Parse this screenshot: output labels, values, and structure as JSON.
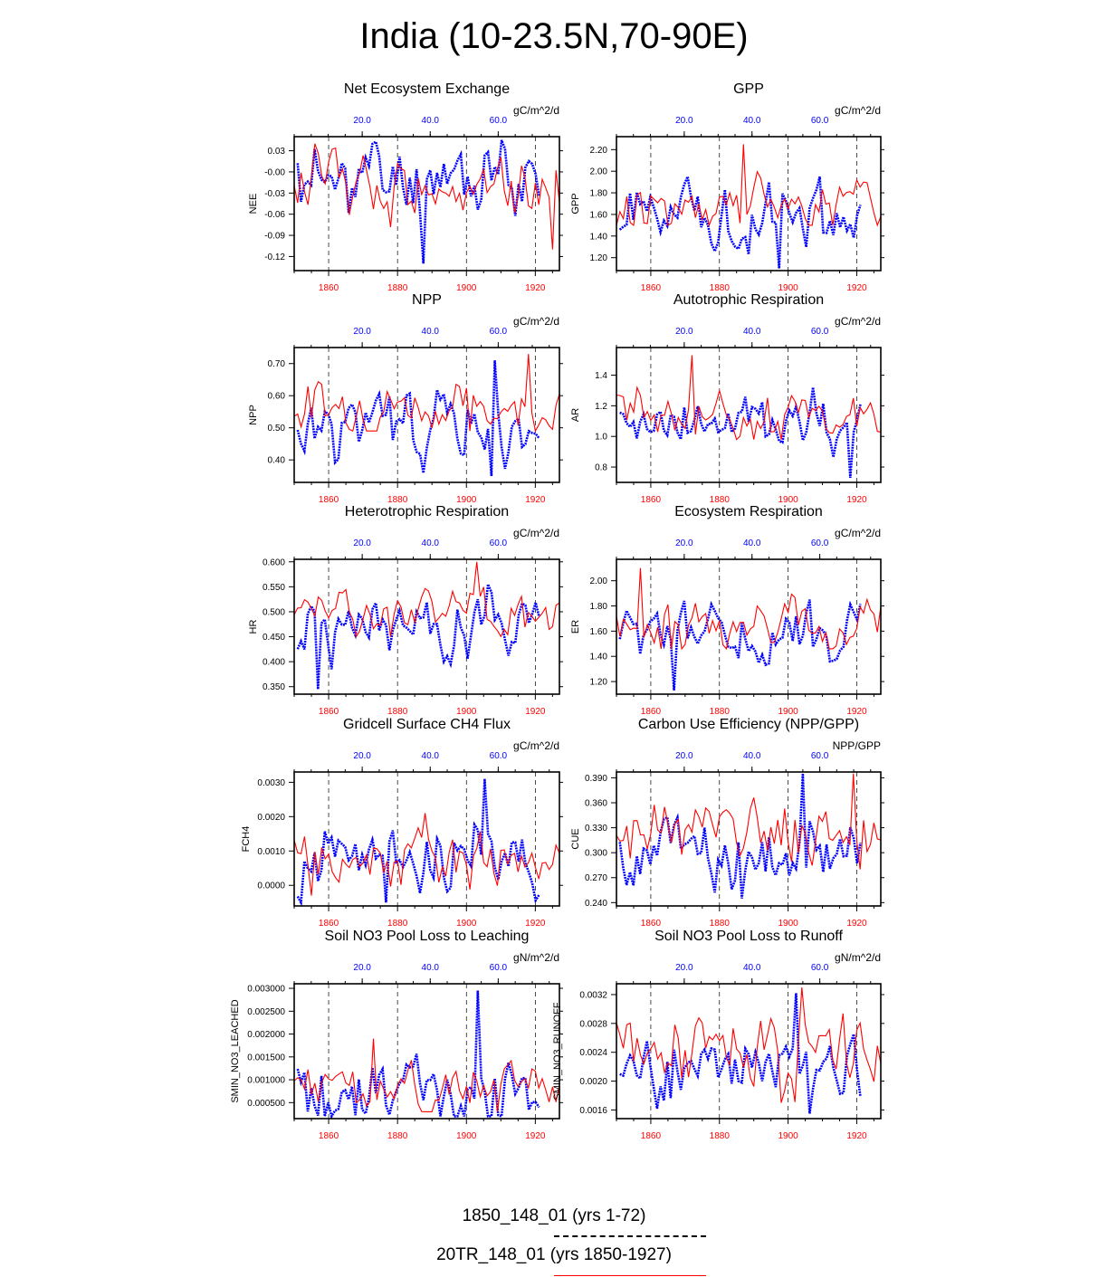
{
  "title": "India (10-23.5N,70-90E)",
  "legend": [
    {
      "label": "1850_148_01 (yrs 1-72)",
      "color": "#0000ff",
      "style": "dashed"
    },
    {
      "label": "20TR_148_01 (yrs 1850-1927)",
      "color": "#ff0000",
      "style": "solid"
    }
  ],
  "chart_data": [
    {
      "type": "line",
      "title": "Net Ecosystem Exchange",
      "ylabel": "NEE",
      "units": "gC/m^2/d",
      "ylim": [
        -0.14,
        0.05
      ],
      "yticks": [
        "0.03",
        "-0.00",
        "-0.03",
        "-0.06",
        "-0.09",
        "-0.12"
      ],
      "ytick_values": [
        0.03,
        0,
        -0.03,
        -0.06,
        -0.09,
        -0.12
      ],
      "xlim": [
        1850,
        1927
      ],
      "xticks": [
        1860,
        1880,
        1900,
        1920
      ],
      "top_xlim": [
        0,
        78
      ],
      "top_xticks": [
        "20.0",
        "40.0",
        "60.0"
      ],
      "top_xtick_values": [
        20,
        40,
        60
      ],
      "series": [
        {
          "color": "#0000ff",
          "x_axis": "top",
          "min": -0.13,
          "max": 0.045,
          "mean": -0.01,
          "seed": 11
        },
        {
          "color": "#ff0000",
          "x_axis": "bottom",
          "min": -0.11,
          "max": 0.04,
          "mean": -0.02,
          "seed": 12
        }
      ]
    },
    {
      "type": "line",
      "title": "GPP",
      "ylabel": "GPP",
      "units": "gC/m^2/d",
      "ylim": [
        1.08,
        2.32
      ],
      "yticks": [
        "2.20",
        "2.00",
        "1.80",
        "1.60",
        "1.40",
        "1.20"
      ],
      "ytick_values": [
        2.2,
        2.0,
        1.8,
        1.6,
        1.4,
        1.2
      ],
      "xlim": [
        1850,
        1927
      ],
      "xticks": [
        1860,
        1880,
        1900,
        1920
      ],
      "top_xlim": [
        0,
        78
      ],
      "top_xticks": [
        "20.0",
        "40.0",
        "60.0"
      ],
      "top_xtick_values": [
        20,
        40,
        60
      ],
      "series": [
        {
          "color": "#0000ff",
          "x_axis": "top",
          "min": 1.1,
          "max": 1.95,
          "mean": 1.6,
          "seed": 21
        },
        {
          "color": "#ff0000",
          "x_axis": "bottom",
          "min": 1.5,
          "max": 2.25,
          "mean": 1.7,
          "seed": 22
        }
      ]
    },
    {
      "type": "line",
      "title": "NPP",
      "ylabel": "NPP",
      "units": "gC/m^2/d",
      "ylim": [
        0.33,
        0.75
      ],
      "yticks": [
        "0.70",
        "0.60",
        "0.50",
        "0.40"
      ],
      "ytick_values": [
        0.7,
        0.6,
        0.5,
        0.4
      ],
      "xlim": [
        1850,
        1927
      ],
      "xticks": [
        1860,
        1880,
        1900,
        1920
      ],
      "top_xlim": [
        0,
        78
      ],
      "top_xticks": [
        "20.0",
        "40.0",
        "60.0"
      ],
      "top_xtick_values": [
        20,
        40,
        60
      ],
      "series": [
        {
          "color": "#0000ff",
          "x_axis": "top",
          "min": 0.35,
          "max": 0.71,
          "mean": 0.5,
          "seed": 31
        },
        {
          "color": "#ff0000",
          "x_axis": "bottom",
          "min": 0.49,
          "max": 0.73,
          "mean": 0.57,
          "seed": 32
        }
      ]
    },
    {
      "type": "line",
      "title": "Autotrophic Respiration",
      "ylabel": "AR",
      "units": "gC/m^2/d",
      "ylim": [
        0.7,
        1.58
      ],
      "yticks": [
        "1.4",
        "1.2",
        "1.0",
        "0.8"
      ],
      "ytick_values": [
        1.4,
        1.2,
        1.0,
        0.8
      ],
      "xlim": [
        1850,
        1927
      ],
      "xticks": [
        1860,
        1880,
        1900,
        1920
      ],
      "top_xlim": [
        0,
        78
      ],
      "top_xticks": [
        "20.0",
        "40.0",
        "60.0"
      ],
      "top_xtick_values": [
        20,
        40,
        60
      ],
      "series": [
        {
          "color": "#0000ff",
          "x_axis": "top",
          "min": 0.73,
          "max": 1.32,
          "mean": 1.08,
          "seed": 41
        },
        {
          "color": "#ff0000",
          "x_axis": "bottom",
          "min": 0.98,
          "max": 1.53,
          "mean": 1.13,
          "seed": 42
        }
      ]
    },
    {
      "type": "line",
      "title": "Heterotrophic Respiration",
      "ylabel": "HR",
      "units": "gC/m^2/d",
      "ylim": [
        0.335,
        0.605
      ],
      "yticks": [
        "0.600",
        "0.550",
        "0.500",
        "0.450",
        "0.400",
        "0.350"
      ],
      "ytick_values": [
        0.6,
        0.55,
        0.5,
        0.45,
        0.4,
        0.35
      ],
      "xlim": [
        1850,
        1927
      ],
      "xticks": [
        1860,
        1880,
        1900,
        1920
      ],
      "top_xlim": [
        0,
        78
      ],
      "top_xticks": [
        "20.0",
        "40.0",
        "60.0"
      ],
      "top_xtick_values": [
        20,
        40,
        60
      ],
      "series": [
        {
          "color": "#0000ff",
          "x_axis": "top",
          "min": 0.345,
          "max": 0.555,
          "mean": 0.46,
          "seed": 51
        },
        {
          "color": "#ff0000",
          "x_axis": "bottom",
          "min": 0.45,
          "max": 0.6,
          "mean": 0.5,
          "seed": 52
        }
      ]
    },
    {
      "type": "line",
      "title": "Ecosystem Respiration",
      "ylabel": "ER",
      "units": "gC/m^2/d",
      "ylim": [
        1.1,
        2.17
      ],
      "yticks": [
        "2.00",
        "1.80",
        "1.60",
        "1.40",
        "1.20"
      ],
      "ytick_values": [
        2.0,
        1.8,
        1.6,
        1.4,
        1.2
      ],
      "xlim": [
        1850,
        1927
      ],
      "xticks": [
        1860,
        1880,
        1900,
        1920
      ],
      "top_xlim": [
        0,
        78
      ],
      "top_xticks": [
        "20.0",
        "40.0",
        "60.0"
      ],
      "top_xtick_values": [
        20,
        40,
        60
      ],
      "series": [
        {
          "color": "#0000ff",
          "x_axis": "top",
          "min": 1.13,
          "max": 1.85,
          "mean": 1.55,
          "seed": 61
        },
        {
          "color": "#ff0000",
          "x_axis": "bottom",
          "min": 1.46,
          "max": 2.1,
          "mean": 1.65,
          "seed": 62
        }
      ]
    },
    {
      "type": "line",
      "title": "Gridcell Surface CH4 Flux",
      "ylabel": "FCH4",
      "units": "gC/m^2/d",
      "ylim": [
        -0.0006,
        0.0033
      ],
      "yticks": [
        "0.0030",
        "0.0020",
        "0.0010",
        "0.0000"
      ],
      "ytick_values": [
        0.003,
        0.002,
        0.001,
        0
      ],
      "xlim": [
        1850,
        1927
      ],
      "xticks": [
        1860,
        1880,
        1900,
        1920
      ],
      "top_xlim": [
        0,
        78
      ],
      "top_xticks": [
        "20.0",
        "40.0",
        "60.0"
      ],
      "top_xtick_values": [
        20,
        40,
        60
      ],
      "series": [
        {
          "color": "#0000ff",
          "x_axis": "top",
          "min": -0.0005,
          "max": 0.0031,
          "mean": 0.0008,
          "seed": 71
        },
        {
          "color": "#ff0000",
          "x_axis": "bottom",
          "min": -0.0003,
          "max": 0.0021,
          "mean": 0.0007,
          "seed": 72
        }
      ]
    },
    {
      "type": "line",
      "title": "Carbon Use Efficiency (NPP/GPP)",
      "ylabel": "CUE",
      "units": "NPP/GPP",
      "ylim": [
        0.236,
        0.397
      ],
      "yticks": [
        "0.390",
        "0.360",
        "0.330",
        "0.300",
        "0.270",
        "0.240"
      ],
      "ytick_values": [
        0.39,
        0.36,
        0.33,
        0.3,
        0.27,
        0.24
      ],
      "xlim": [
        1850,
        1927
      ],
      "xticks": [
        1860,
        1880,
        1900,
        1920
      ],
      "top_xlim": [
        0,
        78
      ],
      "top_xticks": [
        "20.0",
        "40.0",
        "60.0"
      ],
      "top_xtick_values": [
        20,
        40,
        60
      ],
      "series": [
        {
          "color": "#0000ff",
          "x_axis": "top",
          "min": 0.245,
          "max": 0.395,
          "mean": 0.3,
          "seed": 81
        },
        {
          "color": "#ff0000",
          "x_axis": "bottom",
          "min": 0.28,
          "max": 0.395,
          "mean": 0.325,
          "seed": 82
        }
      ]
    },
    {
      "type": "line",
      "title": "Soil NO3 Pool Loss to Leaching",
      "ylabel": "SMIN_NO3_LEACHED",
      "units": "gN/m^2/d",
      "ylim": [
        0.00015,
        0.0031
      ],
      "yticks": [
        "0.003000",
        "0.002500",
        "0.002000",
        "0.001500",
        "0.001000",
        "0.000500"
      ],
      "ytick_values": [
        0.003,
        0.0025,
        0.002,
        0.0015,
        0.001,
        0.0005
      ],
      "xlim": [
        1850,
        1927
      ],
      "xticks": [
        1860,
        1880,
        1900,
        1920
      ],
      "top_xlim": [
        0,
        78
      ],
      "top_xticks": [
        "20.0",
        "40.0",
        "60.0"
      ],
      "top_xtick_values": [
        20,
        40,
        60
      ],
      "series": [
        {
          "color": "#0000ff",
          "x_axis": "top",
          "min": 0.0002,
          "max": 0.00295,
          "mean": 0.0006,
          "seed": 91
        },
        {
          "color": "#ff0000",
          "x_axis": "bottom",
          "min": 0.0003,
          "max": 0.0019,
          "mean": 0.0008,
          "seed": 92
        }
      ]
    },
    {
      "type": "line",
      "title": "Soil NO3 Pool Loss to Runoff",
      "ylabel": "SMIN_NO3_RUNOFF",
      "units": "gN/m^2/d",
      "ylim": [
        0.00148,
        0.00335
      ],
      "yticks": [
        "0.0032",
        "0.0028",
        "0.0024",
        "0.0020",
        "0.0016"
      ],
      "ytick_values": [
        0.0032,
        0.0028,
        0.0024,
        0.002,
        0.0016
      ],
      "xlim": [
        1850,
        1927
      ],
      "xticks": [
        1860,
        1880,
        1900,
        1920
      ],
      "top_xlim": [
        0,
        78
      ],
      "top_xticks": [
        "20.0",
        "40.0",
        "60.0"
      ],
      "top_xtick_values": [
        20,
        40,
        60
      ],
      "series": [
        {
          "color": "#0000ff",
          "x_axis": "top",
          "min": 0.00155,
          "max": 0.00322,
          "mean": 0.0022,
          "seed": 101
        },
        {
          "color": "#ff0000",
          "x_axis": "bottom",
          "min": 0.0017,
          "max": 0.0033,
          "mean": 0.0024,
          "seed": 102
        }
      ]
    }
  ]
}
